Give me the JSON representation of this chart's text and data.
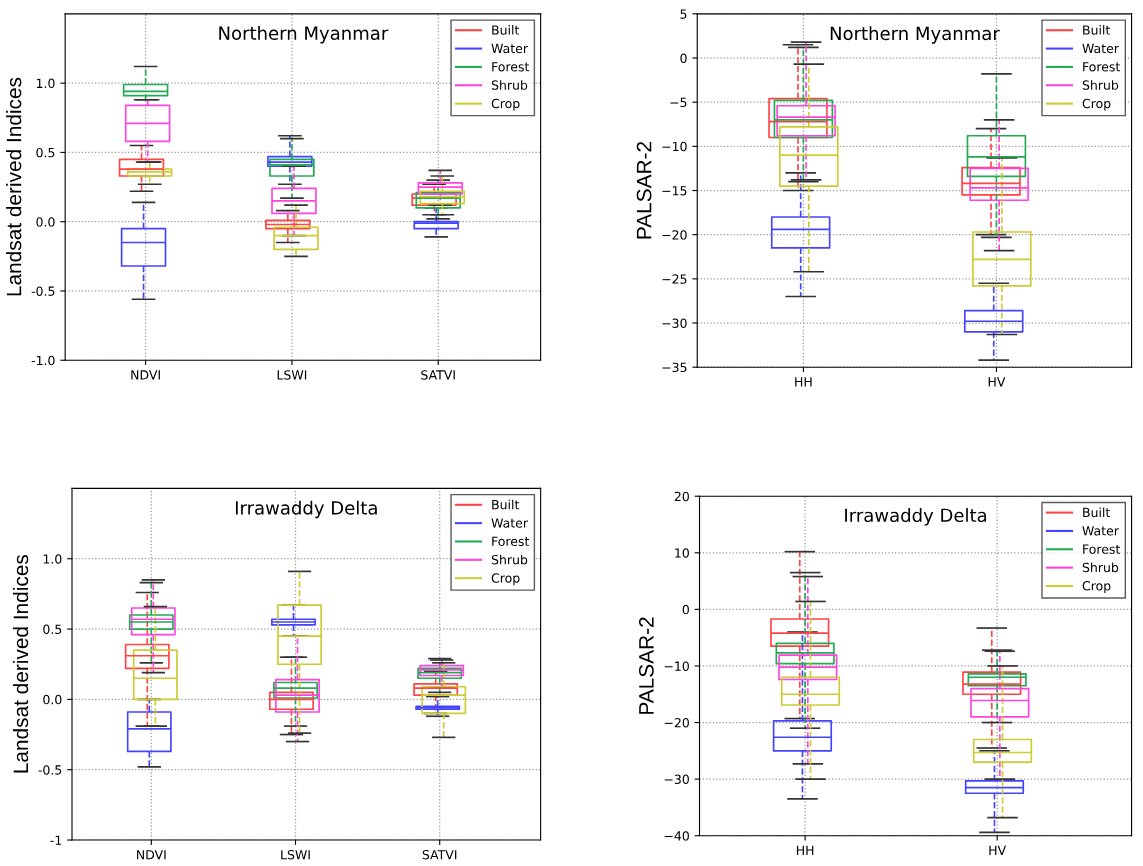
{
  "chart_data": [
    {
      "type": "box",
      "title": "Northern Myanmar",
      "ylabel": "Landsat derived Indices",
      "categories": [
        "NDVI",
        "LSWI",
        "SATVI"
      ],
      "ylim": [
        -1,
        1.5
      ],
      "yticks": [
        {
          "value": -1,
          "label": "-1.0"
        },
        {
          "value": -0.5,
          "label": "-0.5"
        },
        {
          "value": 0,
          "label": "0.0"
        },
        {
          "value": 0.5,
          "label": "0.5"
        },
        {
          "value": 1,
          "label": "1.0"
        }
      ],
      "grid": true,
      "legend": "top right",
      "line_style": "dashed",
      "series": [
        {
          "name": "Built",
          "color": "#ff4444",
          "boxes": [
            {
              "low": 0.22,
              "q1": 0.33,
              "median": 0.38,
              "q3": 0.45,
              "high": 0.55
            },
            {
              "low": -0.15,
              "q1": -0.05,
              "median": -0.02,
              "q3": 0.01,
              "high": 0.08
            },
            {
              "low": 0.05,
              "q1": 0.12,
              "median": 0.17,
              "q3": 0.2,
              "high": 0.27
            }
          ]
        },
        {
          "name": "Water",
          "color": "#4444ff",
          "boxes": [
            {
              "low": -0.56,
              "q1": -0.32,
              "median": -0.15,
              "q3": -0.05,
              "high": 0.14
            },
            {
              "low": 0.27,
              "q1": 0.4,
              "median": 0.43,
              "q3": 0.47,
              "high": 0.62
            },
            {
              "low": -0.11,
              "q1": -0.05,
              "median": -0.01,
              "q3": 0.0,
              "high": 0.1
            }
          ]
        },
        {
          "name": "Forest",
          "color": "#22aa55",
          "boxes": [
            {
              "low": 0.88,
              "q1": 0.91,
              "median": 0.94,
              "q3": 0.99,
              "high": 1.12
            },
            {
              "low": 0.17,
              "q1": 0.33,
              "median": 0.41,
              "q3": 0.45,
              "high": 0.6
            },
            {
              "low": 0.02,
              "q1": 0.1,
              "median": 0.17,
              "q3": 0.21,
              "high": 0.3
            }
          ]
        },
        {
          "name": "Shrub",
          "color": "#ff44dd",
          "boxes": [
            {
              "low": 0.43,
              "q1": 0.58,
              "median": 0.71,
              "q3": 0.84,
              "high": 0.88
            },
            {
              "low": -0.1,
              "q1": 0.06,
              "median": 0.15,
              "q3": 0.24,
              "high": 0.4
            },
            {
              "low": 0.12,
              "q1": 0.2,
              "median": 0.25,
              "q3": 0.28,
              "high": 0.37
            }
          ]
        },
        {
          "name": "Crop",
          "color": "#cccc33",
          "boxes": [
            {
              "low": 0.27,
              "q1": 0.33,
              "median": 0.36,
              "q3": 0.38,
              "high": 0.43
            },
            {
              "low": -0.25,
              "q1": -0.2,
              "median": -0.1,
              "q3": -0.04,
              "high": 0.12
            },
            {
              "low": 0.05,
              "q1": 0.13,
              "median": 0.18,
              "q3": 0.22,
              "high": 0.33
            }
          ]
        }
      ]
    },
    {
      "type": "box",
      "title": "Northern Myanmar",
      "ylabel": "PALSAR-2",
      "categories": [
        "HH",
        "HV"
      ],
      "ylim": [
        -35,
        5
      ],
      "yticks": [
        {
          "value": -35,
          "label": "−35"
        },
        {
          "value": -30,
          "label": "−30"
        },
        {
          "value": -25,
          "label": "−25"
        },
        {
          "value": -20,
          "label": "−20"
        },
        {
          "value": -15,
          "label": "−15"
        },
        {
          "value": -10,
          "label": "−10"
        },
        {
          "value": -5,
          "label": "−5"
        },
        0,
        5
      ],
      "grid": true,
      "legend": "top right",
      "line_style": "dashed",
      "series": [
        {
          "name": "Built",
          "color": "#ff4444",
          "boxes": [
            {
              "low": -15,
              "q1": -9,
              "median": -7.2,
              "q3": -4.6,
              "high": 1.5
            },
            {
              "low": -20,
              "q1": -15.5,
              "median": -14.2,
              "q3": -12.4,
              "high": -8
            }
          ]
        },
        {
          "name": "Water",
          "color": "#4444ff",
          "boxes": [
            {
              "low": -27,
              "q1": -21.5,
              "median": -19.4,
              "q3": -18,
              "high": -13
            },
            {
              "low": -34.2,
              "q1": -31,
              "median": -29.8,
              "q3": -28.6,
              "high": -25.5
            }
          ]
        },
        {
          "name": "Forest",
          "color": "#22aa55",
          "boxes": [
            {
              "low": -14,
              "q1": -9,
              "median": -7,
              "q3": -4.8,
              "high": 1.2
            },
            {
              "low": -20.3,
              "q1": -13.4,
              "median": -11.2,
              "q3": -8.8,
              "high": -1.8
            }
          ]
        },
        {
          "name": "Shrub",
          "color": "#ff44dd",
          "boxes": [
            {
              "low": -13.8,
              "q1": -8.8,
              "median": -6.7,
              "q3": -5.4,
              "high": 1.8
            },
            {
              "low": -21.8,
              "q1": -16.1,
              "median": -14.7,
              "q3": -12.5,
              "high": -7
            }
          ]
        },
        {
          "name": "Crop",
          "color": "#cccc33",
          "boxes": [
            {
              "low": -24.2,
              "q1": -14.5,
              "median": -11,
              "q3": -7.8,
              "high": -0.7
            },
            {
              "low": -31.3,
              "q1": -25.8,
              "median": -22.8,
              "q3": -19.7,
              "high": -11.3
            }
          ]
        }
      ]
    },
    {
      "type": "box",
      "title": "Irrawaddy Delta",
      "ylabel": "Landsat derived Indices",
      "categories": [
        "NDVI",
        "LSWI",
        "SATVI"
      ],
      "ylim": [
        -1,
        1.5
      ],
      "yticks": [
        {
          "value": -1,
          "label": "-1"
        },
        {
          "value": -0.5,
          "label": "-0.5"
        },
        {
          "value": 0,
          "label": "0.0"
        },
        {
          "value": 0.5,
          "label": "0.5"
        },
        {
          "value": 1,
          "label": "1.0"
        }
      ],
      "grid": true,
      "legend": "top right",
      "line_style": "dashed",
      "series": [
        {
          "name": "Built",
          "color": "#ff4444",
          "boxes": [
            {
              "low": -0.19,
              "q1": 0.22,
              "median": 0.31,
              "q3": 0.39,
              "high": 0.76
            },
            {
              "low": -0.25,
              "q1": -0.07,
              "median": 0.0,
              "q3": 0.05,
              "high": 0.3
            },
            {
              "low": -0.1,
              "q1": 0.03,
              "median": 0.08,
              "q3": 0.11,
              "high": 0.2
            }
          ]
        },
        {
          "name": "Water",
          "color": "#4444ff",
          "boxes": [
            {
              "low": -0.48,
              "q1": -0.37,
              "median": -0.21,
              "q3": -0.09,
              "high": 0.0
            },
            {
              "low": 0.45,
              "q1": 0.53,
              "median": 0.55,
              "q3": 0.57,
              "high": 0.67
            },
            {
              "low": -0.12,
              "q1": -0.07,
              "median": -0.06,
              "q3": -0.05,
              "high": 0.02
            }
          ]
        },
        {
          "name": "Forest",
          "color": "#22aa55",
          "boxes": [
            {
              "low": 0.26,
              "q1": 0.5,
              "median": 0.55,
              "q3": 0.6,
              "high": 0.83
            },
            {
              "low": -0.19,
              "q1": 0.01,
              "median": 0.08,
              "q3": 0.12,
              "high": 0.3
            },
            {
              "low": 0.05,
              "q1": 0.15,
              "median": 0.19,
              "q3": 0.22,
              "high": 0.29
            }
          ]
        },
        {
          "name": "Shrub",
          "color": "#ff44dd",
          "boxes": [
            {
              "low": 0.19,
              "q1": 0.46,
              "median": 0.57,
              "q3": 0.65,
              "high": 0.85
            },
            {
              "low": -0.3,
              "q1": -0.09,
              "median": 0.03,
              "q3": 0.14,
              "high": 0.45
            },
            {
              "low": 0.08,
              "q1": 0.17,
              "median": 0.21,
              "q3": 0.24,
              "high": 0.28
            }
          ]
        },
        {
          "name": "Crop",
          "color": "#cccc33",
          "boxes": [
            {
              "low": -0.19,
              "q1": 0.0,
              "median": 0.15,
              "q3": 0.35,
              "high": 0.66
            },
            {
              "low": -0.24,
              "q1": 0.25,
              "median": 0.45,
              "q3": 0.67,
              "high": 0.91
            },
            {
              "low": -0.27,
              "q1": -0.1,
              "median": 0.03,
              "q3": 0.09,
              "high": 0.26
            }
          ]
        }
      ]
    },
    {
      "type": "box",
      "title": "Irrawaddy Delta",
      "ylabel": "PALSAR-2",
      "categories": [
        "HH",
        "HV"
      ],
      "ylim": [
        -40,
        20
      ],
      "yticks": [
        {
          "value": -40,
          "label": "−40"
        },
        {
          "value": -30,
          "label": "−30"
        },
        {
          "value": -20,
          "label": "−20"
        },
        {
          "value": -10,
          "label": "−10"
        },
        0,
        10,
        20
      ],
      "grid": true,
      "legend": "top right",
      "line_style": "dashed",
      "series": [
        {
          "name": "Built",
          "color": "#ff4444",
          "boxes": [
            {
              "low": -19.3,
              "q1": -6.5,
              "median": -4.2,
              "q3": -1.7,
              "high": 10.2
            },
            {
              "low": -24.5,
              "q1": -15,
              "median": -13.2,
              "q3": -11.1,
              "high": -3.3
            }
          ]
        },
        {
          "name": "Water",
          "color": "#4444ff",
          "boxes": [
            {
              "low": -33.5,
              "q1": -25,
              "median": -22.6,
              "q3": -19.7,
              "high": -4
            },
            {
              "low": -39.4,
              "q1": -32.5,
              "median": -31.5,
              "q3": -30.3,
              "high": -25
            }
          ]
        },
        {
          "name": "Forest",
          "color": "#22aa55",
          "boxes": [
            {
              "low": -21,
              "q1": -9.6,
              "median": -7.7,
              "q3": -6,
              "high": 6.5
            },
            {
              "low": -20,
              "q1": -13.5,
              "median": -12,
              "q3": -11.4,
              "high": -7.2
            }
          ]
        },
        {
          "name": "Shrub",
          "color": "#ff44dd",
          "boxes": [
            {
              "low": -27.3,
              "q1": -12.4,
              "median": -10.2,
              "q3": -8.1,
              "high": 5.8
            },
            {
              "low": -30,
              "q1": -19,
              "median": -16.1,
              "q3": -14,
              "high": -7.4
            }
          ]
        },
        {
          "name": "Crop",
          "color": "#cccc33",
          "boxes": [
            {
              "low": -30,
              "q1": -16.9,
              "median": -15,
              "q3": -12,
              "high": 1.4
            },
            {
              "low": -36.8,
              "q1": -27,
              "median": -25.3,
              "q3": -23,
              "high": -10
            }
          ]
        }
      ]
    }
  ]
}
